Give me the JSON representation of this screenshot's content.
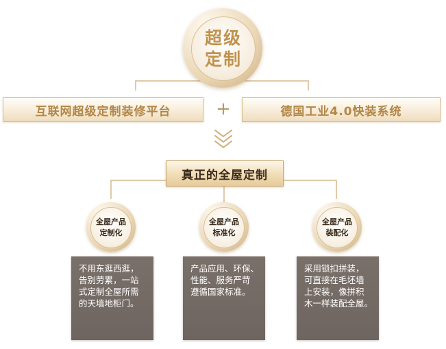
{
  "top_circle": {
    "line1": "超级",
    "line2": "定制"
  },
  "left_bar": "互联网超级定制装修平台",
  "plus_sign": "+",
  "right_bar": "德国工业4.0快装系统",
  "down_chevrons": "≫",
  "banner": "真正的全屋定制",
  "features": [
    {
      "line1": "全屋产品",
      "line2": "定制化",
      "desc": [
        "不用东逛西逛，",
        "告别劳累，一站",
        "式定制全屋所需",
        "的天墙地柜门。"
      ]
    },
    {
      "line1": "全屋产品",
      "line2": "标准化",
      "desc": [
        "产品应用、环保、",
        "性能、服务严苛",
        "遵循国家标准。"
      ]
    },
    {
      "line1": "全屋产品",
      "line2": "装配化",
      "desc": [
        "采用锁扣拼装，",
        "可直接在毛坯墙",
        "上安装，像拼积",
        "木一样装配全屋。"
      ]
    }
  ],
  "colors": {
    "gold": "#c1924d",
    "line": "#d6b88a",
    "card": "#746a64"
  }
}
